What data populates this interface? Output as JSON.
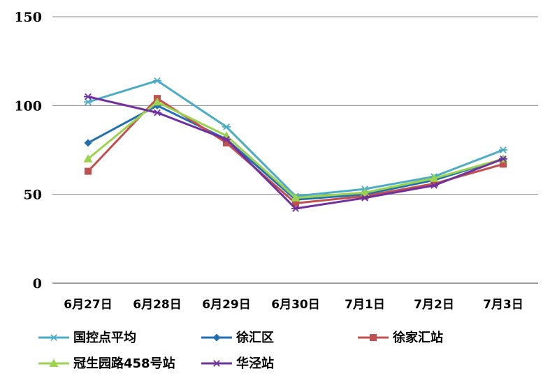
{
  "chart_data": {
    "type": "line",
    "categories": [
      "6月27日",
      "6月28日",
      "6月29日",
      "6月30日",
      "7月1日",
      "7月2日",
      "7月3日"
    ],
    "ylim": [
      0,
      150
    ],
    "yticks": [
      0,
      50,
      100,
      150
    ],
    "grid": true,
    "legend_position": "bottom",
    "series": [
      {
        "name": "国控点平均",
        "color": "#4bacc6",
        "marker": "star",
        "values": [
          102,
          114,
          88,
          49,
          53,
          60,
          75
        ]
      },
      {
        "name": "徐汇区",
        "color": "#1f6fb2",
        "marker": "diamond",
        "values": [
          79,
          100,
          81,
          47,
          50,
          58,
          70
        ]
      },
      {
        "name": "徐家汇站",
        "color": "#c0504d",
        "marker": "square",
        "values": [
          63,
          104,
          79,
          45,
          49,
          56,
          67
        ]
      },
      {
        "name": "冠生园路458号站",
        "color": "#9bd34e",
        "marker": "triangle",
        "values": [
          70,
          102,
          83,
          48,
          51,
          59,
          70
        ]
      },
      {
        "name": "华泾站",
        "color": "#7030a0",
        "marker": "star",
        "values": [
          105,
          96,
          81,
          42,
          48,
          55,
          70
        ]
      }
    ]
  }
}
